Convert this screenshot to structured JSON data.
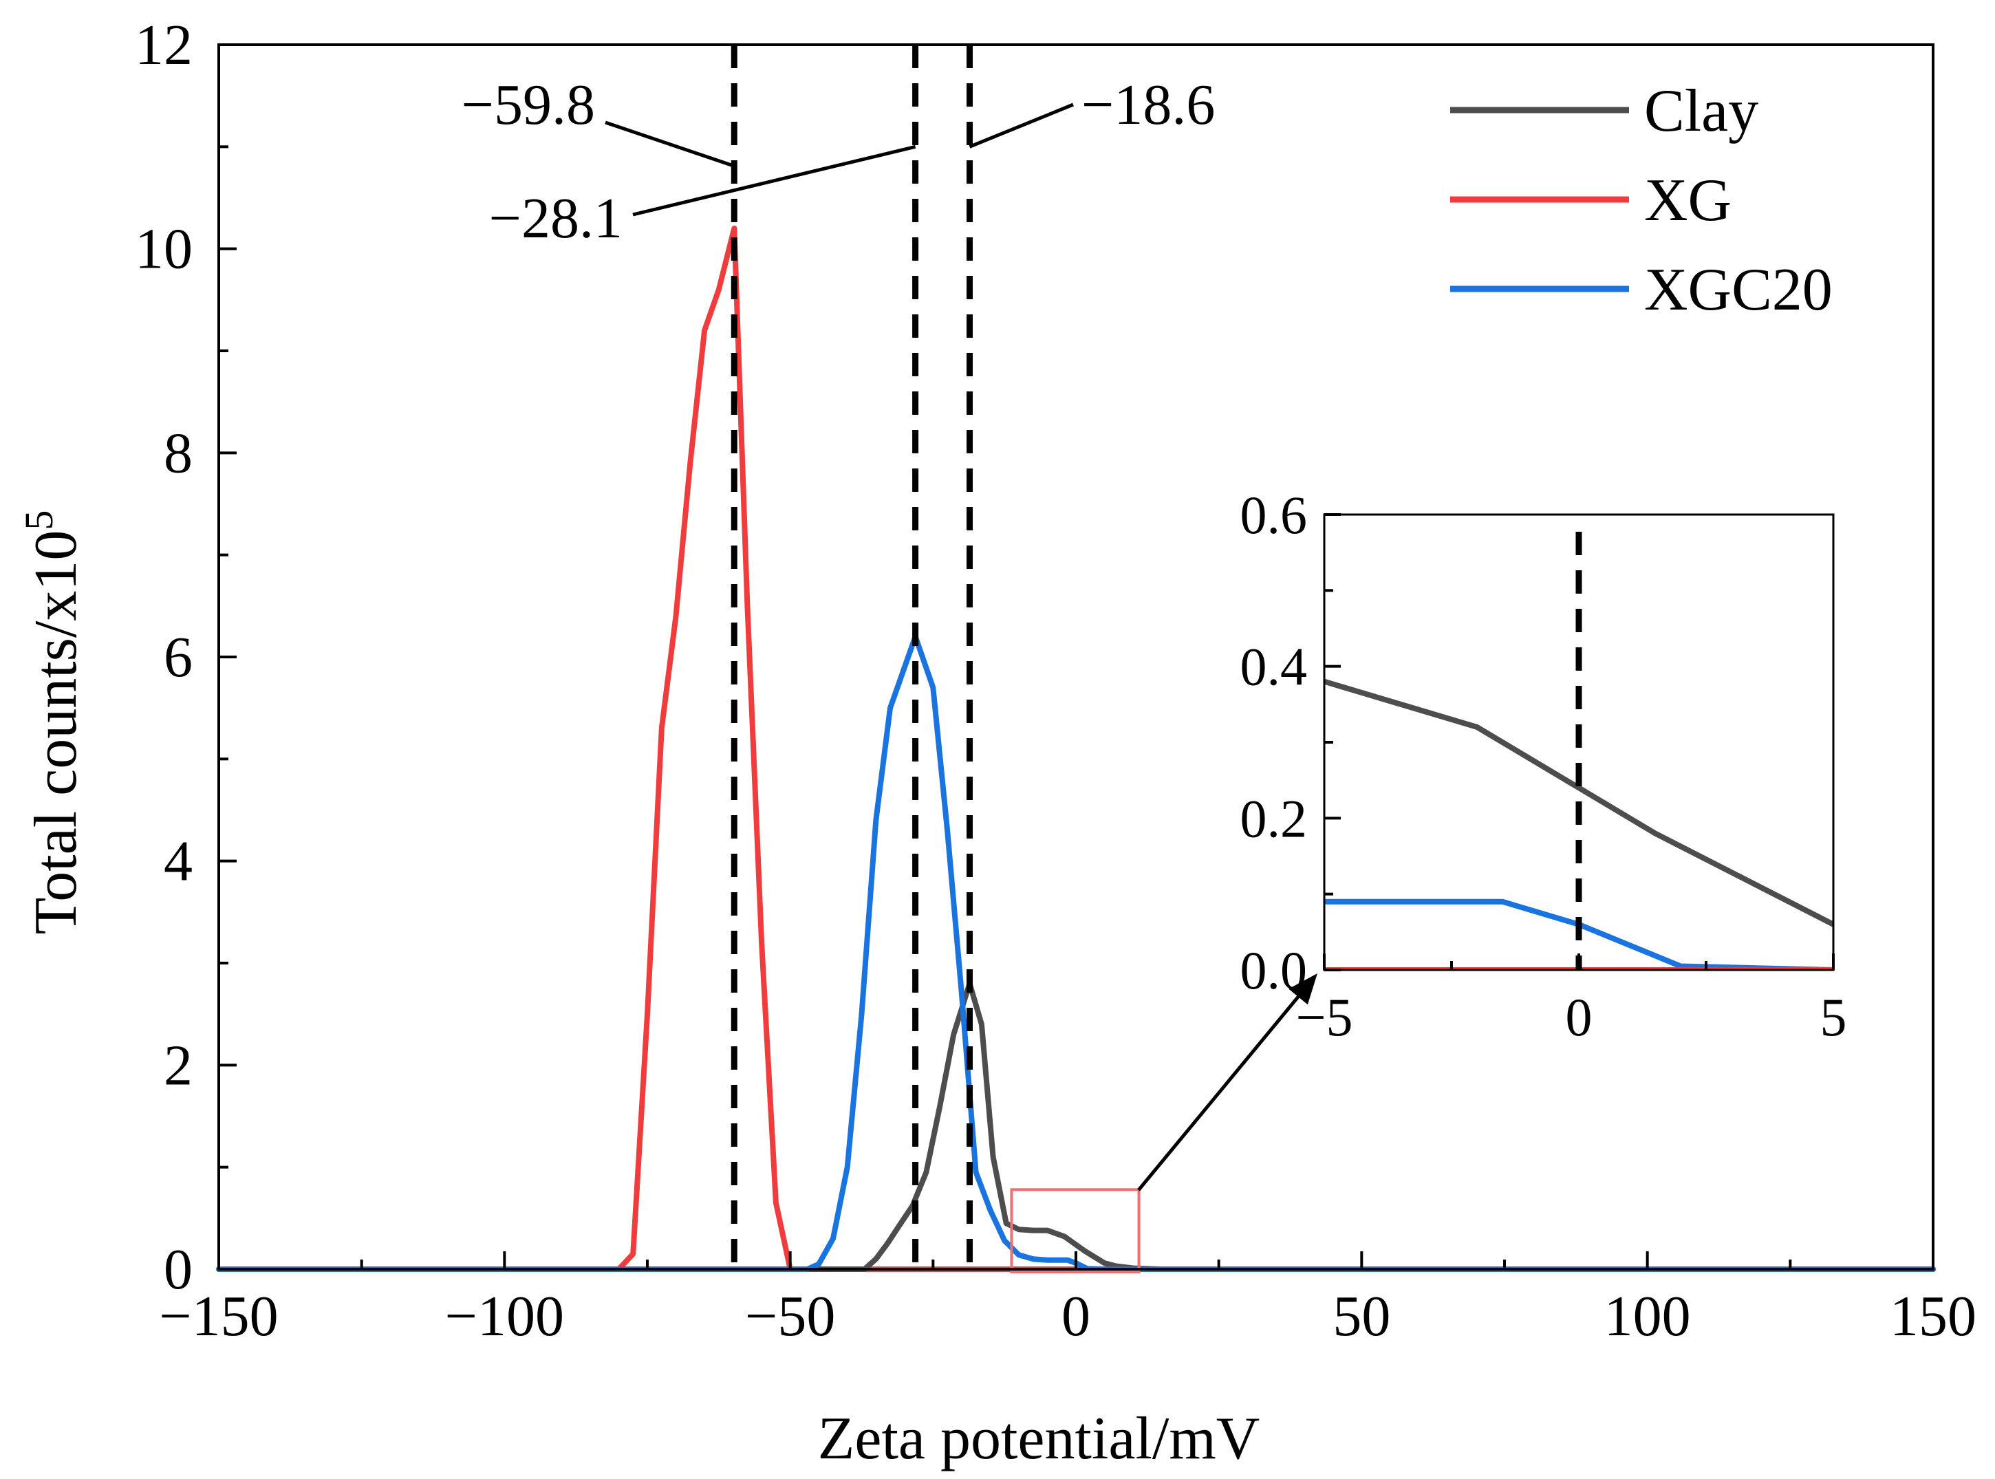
{
  "chart_data": {
    "type": "line",
    "xlabel": "Zeta potential/mV",
    "ylabel_main": "Total counts/x10",
    "ylabel_exponent": "5",
    "xlim": [
      -150,
      150
    ],
    "ylim": [
      0,
      12
    ],
    "xticks": [
      -150,
      -100,
      -50,
      0,
      50,
      100,
      150
    ],
    "xtick_labels": [
      "−150",
      "−100",
      "−50",
      "0",
      "50",
      "100",
      "150"
    ],
    "yticks": [
      0,
      2,
      4,
      6,
      8,
      10,
      12
    ],
    "ytick_labels": [
      "0",
      "2",
      "4",
      "6",
      "8",
      "10",
      "12"
    ],
    "grid": false,
    "legend_position": "top-right",
    "series": [
      {
        "name": "Clay",
        "color": "#4d4d4d",
        "points": [
          [
            -150,
            0
          ],
          [
            -37,
            0
          ],
          [
            -35,
            0.1
          ],
          [
            -33,
            0.25
          ],
          [
            -31,
            0.42
          ],
          [
            -28.6,
            0.62
          ],
          [
            -26.2,
            0.95
          ],
          [
            -23.8,
            1.6
          ],
          [
            -21.4,
            2.3
          ],
          [
            -18.6,
            2.8
          ],
          [
            -16.5,
            2.4
          ],
          [
            -14.5,
            1.1
          ],
          [
            -12.2,
            0.45
          ],
          [
            -10,
            0.39
          ],
          [
            -7.5,
            0.38
          ],
          [
            -5,
            0.38
          ],
          [
            -2,
            0.32
          ],
          [
            0,
            0.24
          ],
          [
            1.5,
            0.18
          ],
          [
            5,
            0.06
          ],
          [
            7,
            0.03
          ],
          [
            10,
            0.01
          ],
          [
            15,
            0
          ],
          [
            150,
            0
          ]
        ]
      },
      {
        "name": "XG",
        "color": "#f03c3c",
        "points": [
          [
            -150,
            0
          ],
          [
            -80,
            0
          ],
          [
            -77.5,
            0.15
          ],
          [
            -75,
            2.5
          ],
          [
            -72.5,
            5.3
          ],
          [
            -70,
            6.4
          ],
          [
            -67.5,
            7.9
          ],
          [
            -65,
            9.2
          ],
          [
            -62.5,
            9.6
          ],
          [
            -59.8,
            10.2
          ],
          [
            -57.5,
            6.5
          ],
          [
            -55,
            3.2
          ],
          [
            -52.5,
            0.65
          ],
          [
            -50,
            0
          ],
          [
            150,
            0
          ]
        ]
      },
      {
        "name": "XGC20",
        "color": "#1a74e0",
        "points": [
          [
            -150,
            0
          ],
          [
            -47,
            0
          ],
          [
            -45,
            0.05
          ],
          [
            -42.5,
            0.3
          ],
          [
            -40,
            1.0
          ],
          [
            -37.5,
            2.5
          ],
          [
            -35,
            4.4
          ],
          [
            -32.5,
            5.5
          ],
          [
            -28.1,
            6.2
          ],
          [
            -25,
            5.7
          ],
          [
            -22.5,
            4.3
          ],
          [
            -20,
            2.7
          ],
          [
            -17.5,
            0.95
          ],
          [
            -15,
            0.58
          ],
          [
            -12.5,
            0.28
          ],
          [
            -10,
            0.14
          ],
          [
            -7.5,
            0.1
          ],
          [
            -5,
            0.09
          ],
          [
            -1.5,
            0.09
          ],
          [
            0,
            0.06
          ],
          [
            2,
            0.005
          ],
          [
            5,
            0
          ],
          [
            150,
            0
          ]
        ]
      }
    ],
    "reference_lines": [
      -59.8,
      -28.1,
      -18.6
    ],
    "annotations": [
      {
        "text": "−59.8",
        "target_x": -59.8,
        "target_y": 11.0
      },
      {
        "text": "−28.1",
        "target_x": -28.1,
        "target_y": 11.0
      },
      {
        "text": "−18.6",
        "target_x": -18.6,
        "target_y": 11.0
      }
    ],
    "zoom_box": {
      "x_range": [
        -5,
        5
      ],
      "y_range": [
        0,
        0.6
      ]
    },
    "inset": {
      "xlim": [
        -5,
        5
      ],
      "ylim": [
        0,
        0.6
      ],
      "xticks": [
        -5,
        0,
        5
      ],
      "xtick_labels": [
        "−5",
        "0",
        "5"
      ],
      "yticks": [
        0,
        0.2,
        0.4,
        0.6
      ],
      "ytick_labels": [
        "0.0",
        "0.2",
        "0.4",
        "0.6"
      ],
      "reference_line": 0
    }
  }
}
